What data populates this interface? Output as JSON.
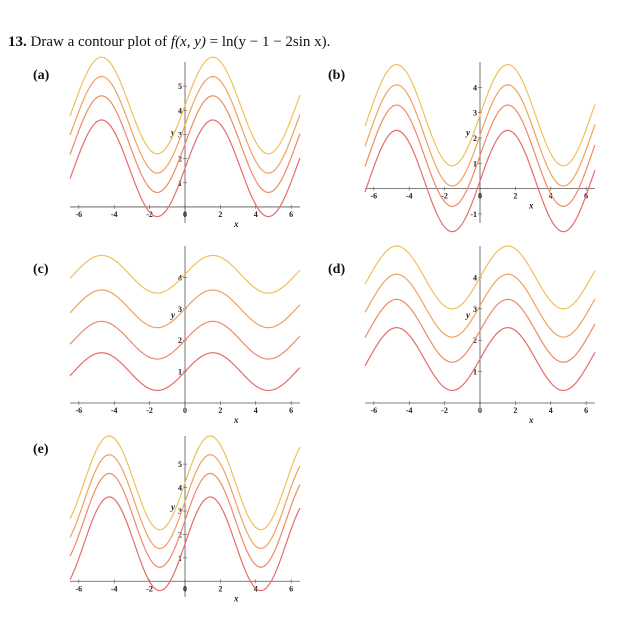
{
  "problem": {
    "number": "13.",
    "prompt": "Draw a contour plot of",
    "func_lhs": "f",
    "func_args": "(x, y)",
    "func_eq": " = ln(y − 1 − 2sin x)."
  },
  "colors": {
    "contours": [
      "#f0c05a",
      "#f0a25e",
      "#ee8a66",
      "#e66b6b"
    ],
    "axis": "#555555"
  },
  "chart_data": [
    {
      "label": "(a)",
      "type": "line",
      "xlabel": "x",
      "ylabel": "y",
      "xlim": [
        -6.5,
        6.5
      ],
      "ylim": [
        -0.5,
        6
      ],
      "x_ticks": [
        "-6",
        "-4",
        "-2",
        "0",
        "2",
        "4",
        "6"
      ],
      "y_ticks": [
        "1",
        "2",
        "3",
        "4",
        "5"
      ],
      "curves": [
        {
          "amplitude": 2,
          "offset": 4.2,
          "frequency": 1
        },
        {
          "amplitude": 2,
          "offset": 3.4,
          "frequency": 1
        },
        {
          "amplitude": 2,
          "offset": 2.6,
          "frequency": 1
        },
        {
          "amplitude": 2,
          "offset": 1.6,
          "frequency": 1
        }
      ]
    },
    {
      "label": "(b)",
      "type": "line",
      "xlabel": "x",
      "ylabel": "y",
      "xlim": [
        -6.5,
        6.5
      ],
      "ylim": [
        -1.2,
        5
      ],
      "x_ticks": [
        "-6",
        "-4",
        "-2",
        "0",
        "2",
        "4",
        "6"
      ],
      "y_ticks": [
        "-1",
        "1",
        "2",
        "3",
        "4"
      ],
      "curves": [
        {
          "amplitude": 2,
          "offset": 2.9,
          "frequency": 1
        },
        {
          "amplitude": 2,
          "offset": 2.1,
          "frequency": 1
        },
        {
          "amplitude": 2,
          "offset": 1.3,
          "frequency": 1
        },
        {
          "amplitude": 2,
          "offset": 0.3,
          "frequency": 1
        }
      ]
    },
    {
      "label": "(c)",
      "type": "line",
      "xlabel": "x",
      "ylabel": "y",
      "xlim": [
        -6.5,
        6.5
      ],
      "ylim": [
        0,
        5
      ],
      "x_ticks": [
        "-6",
        "-4",
        "-2",
        "0",
        "2",
        "4",
        "6"
      ],
      "y_ticks": [
        "1",
        "2",
        "3",
        "4"
      ],
      "curves": [
        {
          "amplitude": 0.6,
          "offset": 4.1,
          "frequency": 1
        },
        {
          "amplitude": 0.6,
          "offset": 3.0,
          "frequency": 1
        },
        {
          "amplitude": 0.6,
          "offset": 2.0,
          "frequency": 1
        },
        {
          "amplitude": 0.6,
          "offset": 1.0,
          "frequency": 1
        }
      ]
    },
    {
      "label": "(d)",
      "type": "line",
      "xlabel": "x",
      "ylabel": "y",
      "xlim": [
        -6.5,
        6.5
      ],
      "ylim": [
        0,
        5
      ],
      "x_ticks": [
        "-6",
        "-4",
        "-2",
        "0",
        "2",
        "4",
        "6"
      ],
      "y_ticks": [
        "1",
        "2",
        "3",
        "4"
      ],
      "curves": [
        {
          "amplitude": 1,
          "offset": 4.0,
          "frequency": 1
        },
        {
          "amplitude": 1,
          "offset": 3.1,
          "frequency": 1
        },
        {
          "amplitude": 1,
          "offset": 2.3,
          "frequency": 1
        },
        {
          "amplitude": 1,
          "offset": 1.4,
          "frequency": 1
        }
      ]
    },
    {
      "label": "(e)",
      "type": "line",
      "xlabel": "x",
      "ylabel": "y",
      "xlim": [
        -6.5,
        6.5
      ],
      "ylim": [
        -0.5,
        6.2
      ],
      "x_ticks": [
        "-6",
        "-4",
        "-2",
        "0",
        "2",
        "4",
        "6"
      ],
      "y_ticks": [
        "1",
        "2",
        "3",
        "4",
        "5"
      ],
      "curves": [
        {
          "amplitude": 2,
          "offset": 4.2,
          "frequency": 1.1
        },
        {
          "amplitude": 2,
          "offset": 3.4,
          "frequency": 1.1
        },
        {
          "amplitude": 2,
          "offset": 2.6,
          "frequency": 1.1
        },
        {
          "amplitude": 2,
          "offset": 1.6,
          "frequency": 1.1
        }
      ]
    }
  ]
}
